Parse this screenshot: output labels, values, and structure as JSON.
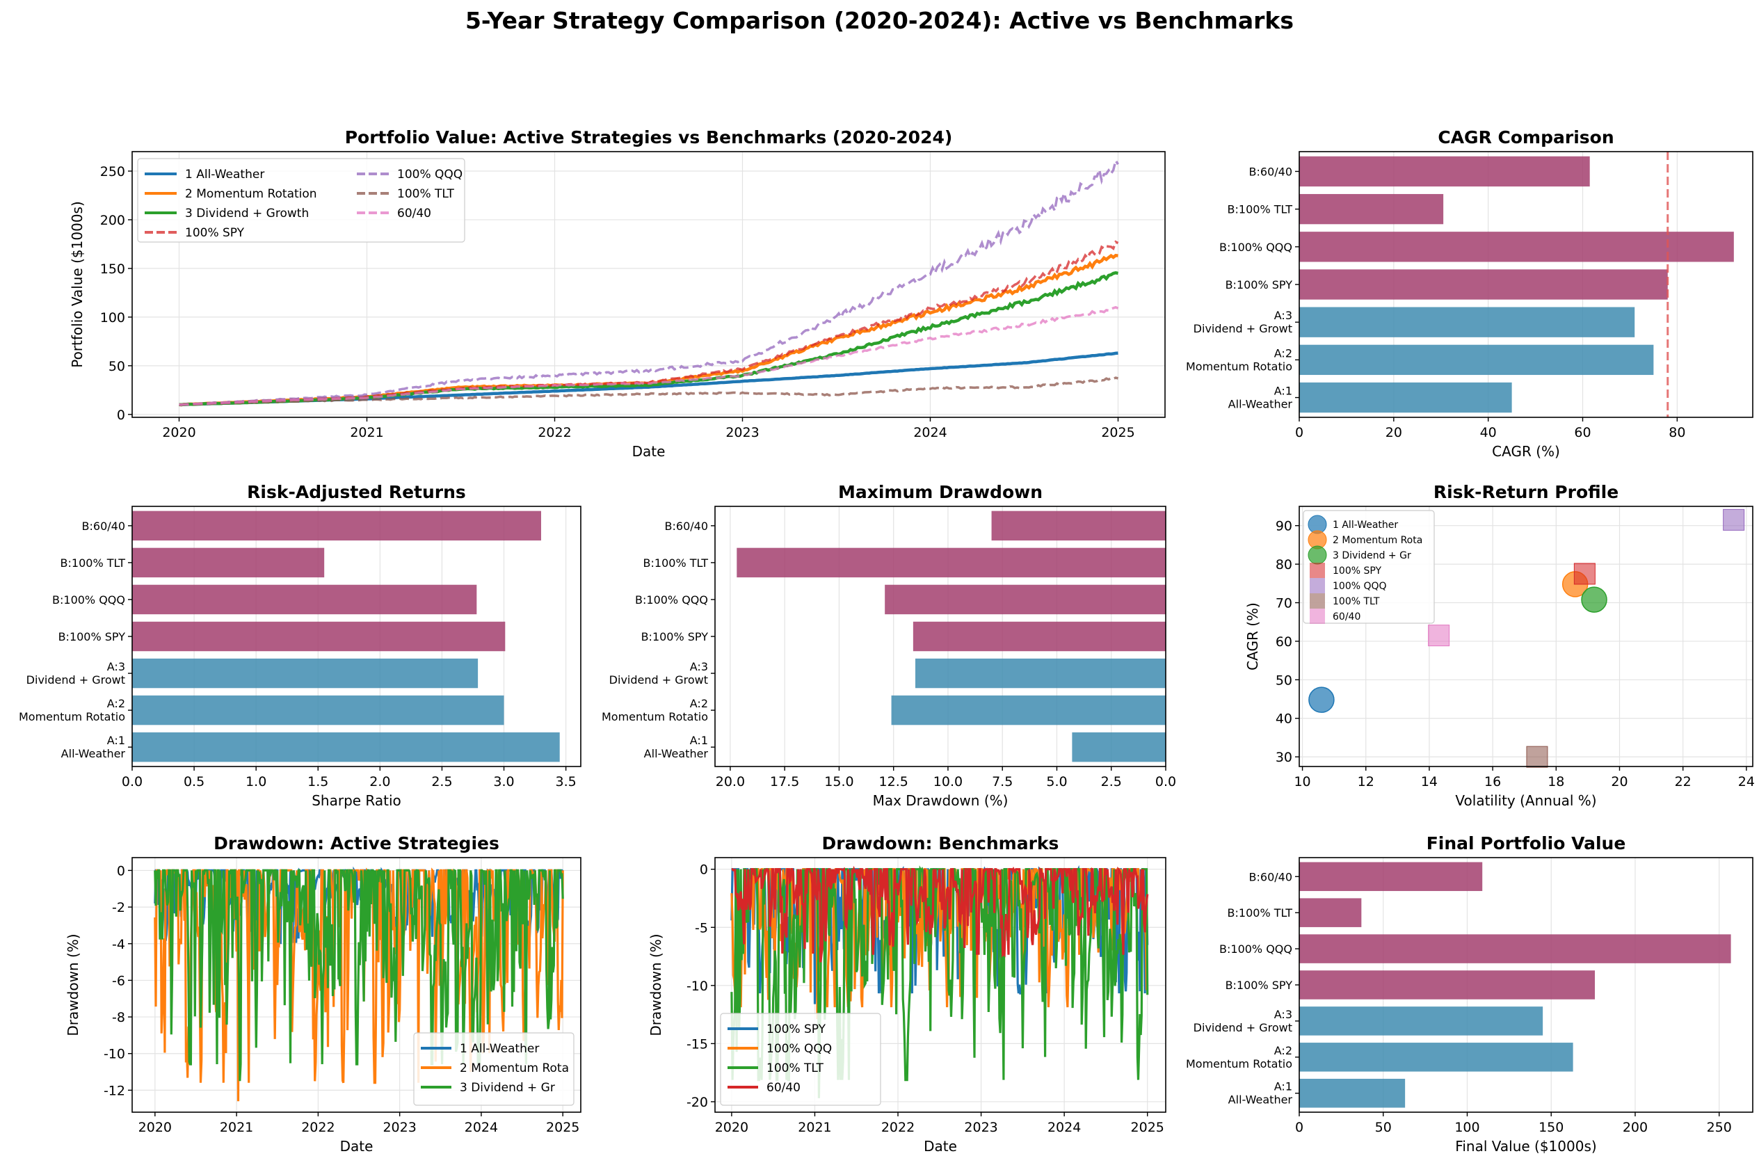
{
  "suptitle": "5-Year Strategy Comparison (2020-2024): Active vs Benchmarks",
  "colors": {
    "active_bar": "#3f8cb0",
    "bench_bar": "#a3406f",
    "ref_line": "#e05555",
    "s1": "#1f77b4",
    "s2": "#ff7f0e",
    "s3": "#2ca02c",
    "spy": "#d62728",
    "qqq": "#9467bd",
    "tlt": "#8c564b",
    "b6040": "#e377c2"
  },
  "strategy_labels": [
    "A:1\nAll-Weather",
    "A:2\nMomentum Rotatio",
    "A:3\nDividend + Growt",
    "B:100% SPY",
    "B:100% QQQ",
    "B:100% TLT",
    "B:60/40"
  ],
  "chart_data": [
    {
      "id": "portfolio",
      "type": "line",
      "title": "Portfolio Value: Active Strategies vs Benchmarks (2020-2024)",
      "xlabel": "Date",
      "ylabel": "Portfolio Value ($1000s)",
      "x_ticks": [
        "2020",
        "2021",
        "2022",
        "2023",
        "2024",
        "2025"
      ],
      "y_ticks": [
        0,
        50,
        100,
        150,
        200,
        250
      ],
      "xlim": [
        2019.75,
        2025.25
      ],
      "ylim": [
        -3,
        270
      ],
      "grid": true,
      "legend_position": "top-left",
      "series": [
        {
          "name": "1 All-Weather",
          "style": "solid",
          "x": [
            2020,
            2020.5,
            2021,
            2021.5,
            2022,
            2022.5,
            2023,
            2023.5,
            2024,
            2024.5,
            2025
          ],
          "values": [
            10,
            13,
            16,
            20,
            24,
            28,
            34,
            40,
            47,
            53,
            63
          ]
        },
        {
          "name": "2 Momentum Rotation",
          "style": "solid",
          "x": [
            2020,
            2020.5,
            2021,
            2021.5,
            2022,
            2022.5,
            2023,
            2023.5,
            2024,
            2024.5,
            2025
          ],
          "values": [
            10,
            14,
            18,
            28,
            30,
            32,
            45,
            78,
            105,
            130,
            163
          ]
        },
        {
          "name": "3 Dividend + Growth",
          "style": "solid",
          "x": [
            2020,
            2020.5,
            2021,
            2021.5,
            2022,
            2022.5,
            2023,
            2023.5,
            2024,
            2024.5,
            2025
          ],
          "values": [
            10,
            13,
            17,
            26,
            28,
            30,
            40,
            62,
            90,
            115,
            145
          ]
        },
        {
          "name": "100% SPY",
          "style": "dashed",
          "x": [
            2020,
            2020.5,
            2021,
            2021.5,
            2022,
            2022.5,
            2023,
            2023.5,
            2024,
            2024.5,
            2025
          ],
          "values": [
            10,
            14,
            18,
            27,
            30,
            33,
            47,
            80,
            108,
            135,
            176
          ]
        },
        {
          "name": "100% QQQ",
          "style": "dashed",
          "x": [
            2020,
            2020.5,
            2021,
            2021.5,
            2022,
            2022.5,
            2023,
            2023.5,
            2024,
            2024.5,
            2025
          ],
          "values": [
            10,
            15,
            20,
            35,
            40,
            45,
            55,
            100,
            145,
            195,
            257
          ]
        },
        {
          "name": "100% TLT",
          "style": "dashed",
          "x": [
            2020,
            2020.5,
            2021,
            2021.5,
            2022,
            2022.5,
            2023,
            2023.5,
            2024,
            2024.5,
            2025
          ],
          "values": [
            10,
            13,
            15,
            17,
            19,
            21,
            22,
            20,
            27,
            28,
            37
          ]
        },
        {
          "name": "60/40",
          "style": "dashed",
          "x": [
            2020,
            2020.5,
            2021,
            2021.5,
            2022,
            2022.5,
            2023,
            2023.5,
            2024,
            2024.5,
            2025
          ],
          "values": [
            10,
            14,
            17,
            26,
            30,
            32,
            40,
            60,
            78,
            92,
            109
          ]
        }
      ]
    },
    {
      "id": "cagr",
      "type": "bar",
      "orientation": "horizontal",
      "title": "CAGR Comparison",
      "xlabel": "CAGR (%)",
      "x_ticks": [
        0,
        20,
        40,
        60,
        80
      ],
      "xlim": [
        0,
        96
      ],
      "values": [
        45,
        75,
        71,
        78,
        92,
        30.5,
        61.5
      ],
      "reference_line": 78
    },
    {
      "id": "sharpe",
      "type": "bar",
      "orientation": "horizontal",
      "title": "Risk-Adjusted Returns",
      "xlabel": "Sharpe Ratio",
      "x_ticks": [
        "0.0",
        "0.5",
        "1.0",
        "1.5",
        "2.0",
        "2.5",
        "3.0",
        "3.5"
      ],
      "xlim": [
        0,
        3.62
      ],
      "values": [
        3.45,
        3.0,
        2.79,
        3.01,
        2.78,
        1.55,
        3.3
      ]
    },
    {
      "id": "maxdd",
      "type": "bar",
      "orientation": "horizontal",
      "title": "Maximum Drawdown",
      "xlabel": "Max Drawdown (%)",
      "x_ticks": [
        "20.0",
        "17.5",
        "15.0",
        "12.5",
        "10.0",
        "7.5",
        "5.0",
        "2.5",
        "0.0"
      ],
      "xlim": [
        20.7,
        0
      ],
      "values": [
        4.3,
        12.6,
        11.5,
        11.6,
        12.9,
        19.7,
        8.0
      ]
    },
    {
      "id": "riskreturn",
      "type": "scatter",
      "title": "Risk-Return Profile",
      "xlabel": "Volatility (Annual %)",
      "ylabel": "CAGR (%)",
      "x_ticks": [
        10,
        12,
        14,
        16,
        18,
        20,
        22,
        24
      ],
      "y_ticks": [
        30,
        40,
        50,
        60,
        70,
        80,
        90
      ],
      "xlim": [
        9.9,
        24.2
      ],
      "ylim": [
        27.5,
        95
      ],
      "legend_position": "top-left",
      "points": [
        {
          "name": "1 All-Weather",
          "x": 10.6,
          "y": 44.8,
          "marker": "circle"
        },
        {
          "name": "2 Momentum Rota",
          "x": 18.6,
          "y": 74.8,
          "marker": "circle"
        },
        {
          "name": "3 Dividend + Gr",
          "x": 19.2,
          "y": 70.8,
          "marker": "circle"
        },
        {
          "name": "100% SPY",
          "x": 18.9,
          "y": 77.5,
          "marker": "square"
        },
        {
          "name": "100% QQQ",
          "x": 23.6,
          "y": 91.5,
          "marker": "square"
        },
        {
          "name": "100% TLT",
          "x": 17.4,
          "y": 30.0,
          "marker": "square"
        },
        {
          "name": "60/40",
          "x": 14.3,
          "y": 61.5,
          "marker": "square"
        }
      ]
    },
    {
      "id": "dd_active",
      "type": "line",
      "title": "Drawdown: Active Strategies",
      "xlabel": "Date",
      "ylabel": "Drawdown (%)",
      "x_ticks": [
        "2020",
        "2021",
        "2022",
        "2023",
        "2024",
        "2025"
      ],
      "y_ticks": [
        0,
        -2,
        -4,
        -6,
        -8,
        -10,
        -12
      ],
      "xlim": [
        2019.72,
        2025.22
      ],
      "ylim": [
        -13.2,
        0.7
      ],
      "legend_position": "bottom-right",
      "series": [
        {
          "name": "1 All-Weather",
          "max_drawdown": -4.3
        },
        {
          "name": "2 Momentum Rota",
          "max_drawdown": -12.6
        },
        {
          "name": "3 Dividend + Gr",
          "max_drawdown": -11.5
        }
      ]
    },
    {
      "id": "dd_bench",
      "type": "line",
      "title": "Drawdown: Benchmarks",
      "xlabel": "Date",
      "ylabel": "Drawdown (%)",
      "x_ticks": [
        "2020",
        "2021",
        "2022",
        "2023",
        "2024",
        "2025"
      ],
      "y_ticks": [
        0,
        -5,
        -10,
        -15,
        -20
      ],
      "xlim": [
        2019.8,
        2025.22
      ],
      "ylim": [
        -20.9,
        1.0
      ],
      "legend_position": "bottom-left",
      "series": [
        {
          "name": "100% SPY",
          "max_drawdown": -11.6
        },
        {
          "name": "100% QQQ",
          "max_drawdown": -12.9
        },
        {
          "name": "100% TLT",
          "max_drawdown": -19.7
        },
        {
          "name": "60/40",
          "max_drawdown": -8.0
        }
      ]
    },
    {
      "id": "final",
      "type": "bar",
      "orientation": "horizontal",
      "title": "Final Portfolio Value",
      "xlabel": "Final Value ($1000s)",
      "x_ticks": [
        0,
        50,
        100,
        150,
        200,
        250
      ],
      "xlim": [
        0,
        270
      ],
      "values": [
        63,
        163,
        145,
        176,
        257,
        37,
        109
      ]
    }
  ]
}
